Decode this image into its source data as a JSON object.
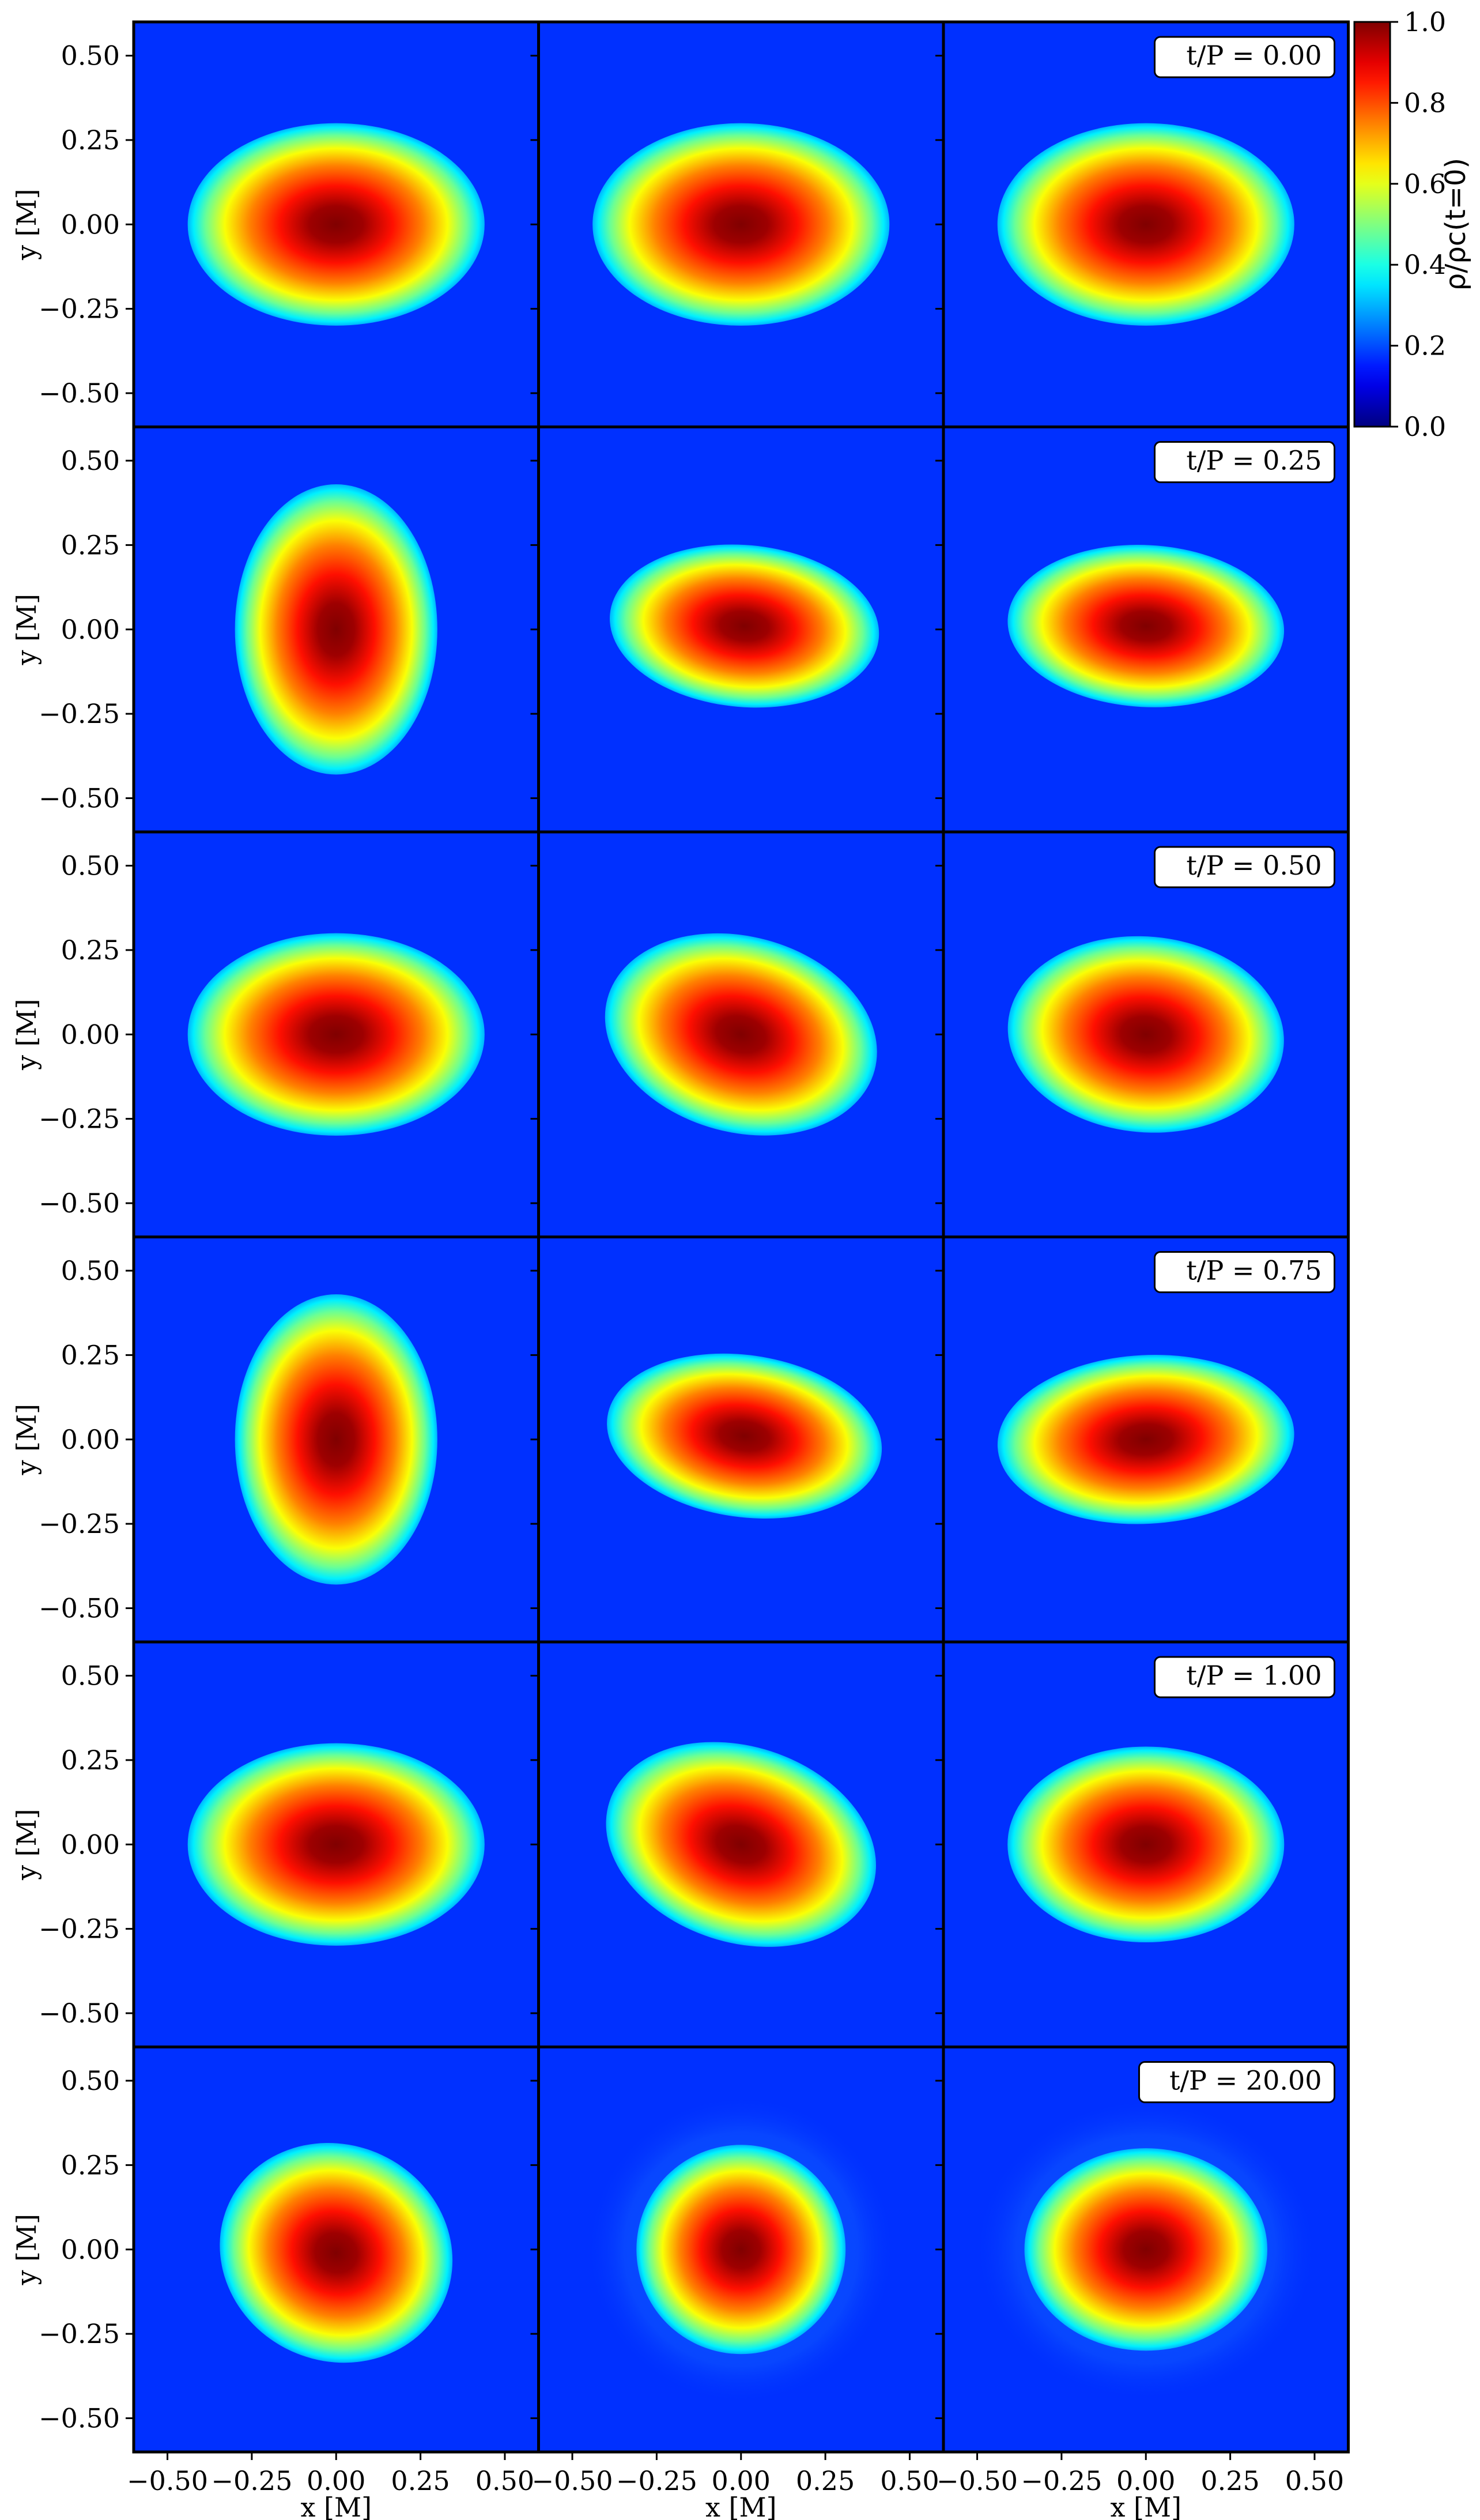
{
  "chart_data": {
    "type": "heatmap",
    "layout": "6 rows x 3 columns of density snapshots",
    "xlabel": "x [M]",
    "ylabel": "y [M]",
    "xlim": [
      -0.6,
      0.6
    ],
    "ylim": [
      -0.6,
      0.6
    ],
    "xticks": [
      "−0.50",
      "−0.25",
      "0.00",
      "0.25",
      "0.50"
    ],
    "yticks": [
      "0.50",
      "0.25",
      "0.00",
      "−0.25",
      "−0.50"
    ],
    "colorbar": {
      "label": "ρ/ρc(t=0)",
      "range": [
        0.0,
        1.0
      ],
      "ticks": [
        "0.0",
        "0.2",
        "0.4",
        "0.6",
        "0.8",
        "1.0"
      ],
      "colormap": "jet"
    },
    "background_color": "#0030ff",
    "rows": [
      {
        "time_label": "t/P = 0.00",
        "panels": [
          {
            "cx": 0.0,
            "cy": 0.0,
            "rx": 0.44,
            "ry": 0.3,
            "angle_deg": 0,
            "max_density": 1.0
          },
          {
            "cx": 0.0,
            "cy": 0.0,
            "rx": 0.44,
            "ry": 0.3,
            "angle_deg": 0,
            "max_density": 1.0
          },
          {
            "cx": 0.0,
            "cy": 0.0,
            "rx": 0.44,
            "ry": 0.3,
            "angle_deg": 0,
            "max_density": 1.0
          }
        ]
      },
      {
        "time_label": "t/P = 0.25",
        "panels": [
          {
            "cx": 0.0,
            "cy": 0.0,
            "rx": 0.3,
            "ry": 0.43,
            "angle_deg": 0,
            "max_density": 1.0
          },
          {
            "cx": 0.01,
            "cy": 0.01,
            "rx": 0.4,
            "ry": 0.24,
            "angle_deg": -5,
            "max_density": 1.0
          },
          {
            "cx": 0.0,
            "cy": 0.01,
            "rx": 0.41,
            "ry": 0.24,
            "angle_deg": -3,
            "max_density": 1.0
          }
        ]
      },
      {
        "time_label": "t/P = 0.50",
        "panels": [
          {
            "cx": 0.0,
            "cy": 0.0,
            "rx": 0.44,
            "ry": 0.3,
            "angle_deg": 0,
            "max_density": 1.0
          },
          {
            "cx": 0.0,
            "cy": 0.0,
            "rx": 0.41,
            "ry": 0.29,
            "angle_deg": -15,
            "max_density": 1.0
          },
          {
            "cx": 0.0,
            "cy": 0.0,
            "rx": 0.41,
            "ry": 0.29,
            "angle_deg": -5,
            "max_density": 1.0
          }
        ]
      },
      {
        "time_label": "t/P = 0.75",
        "panels": [
          {
            "cx": 0.0,
            "cy": 0.0,
            "rx": 0.3,
            "ry": 0.43,
            "angle_deg": 0,
            "max_density": 1.0
          },
          {
            "cx": 0.01,
            "cy": 0.01,
            "rx": 0.41,
            "ry": 0.24,
            "angle_deg": -8,
            "max_density": 1.0
          },
          {
            "cx": 0.0,
            "cy": 0.0,
            "rx": 0.44,
            "ry": 0.25,
            "angle_deg": 3,
            "max_density": 1.0
          }
        ]
      },
      {
        "time_label": "t/P = 1.00",
        "panels": [
          {
            "cx": 0.0,
            "cy": 0.0,
            "rx": 0.44,
            "ry": 0.3,
            "angle_deg": 0,
            "max_density": 1.0
          },
          {
            "cx": 0.0,
            "cy": 0.0,
            "rx": 0.41,
            "ry": 0.29,
            "angle_deg": -18,
            "max_density": 1.0
          },
          {
            "cx": 0.0,
            "cy": 0.0,
            "rx": 0.41,
            "ry": 0.29,
            "angle_deg": 0,
            "max_density": 1.0
          }
        ]
      },
      {
        "time_label": "t/P = 20.00",
        "panels": [
          {
            "cx": 0.0,
            "cy": -0.01,
            "rx": 0.35,
            "ry": 0.32,
            "angle_deg": -25,
            "max_density": 1.0
          },
          {
            "cx": 0.0,
            "cy": 0.0,
            "rx": 0.31,
            "ry": 0.31,
            "angle_deg": 0,
            "max_density": 1.0,
            "halo": true
          },
          {
            "cx": 0.0,
            "cy": 0.0,
            "rx": 0.36,
            "ry": 0.3,
            "angle_deg": 0,
            "max_density": 1.0,
            "halo": true
          }
        ]
      }
    ]
  }
}
